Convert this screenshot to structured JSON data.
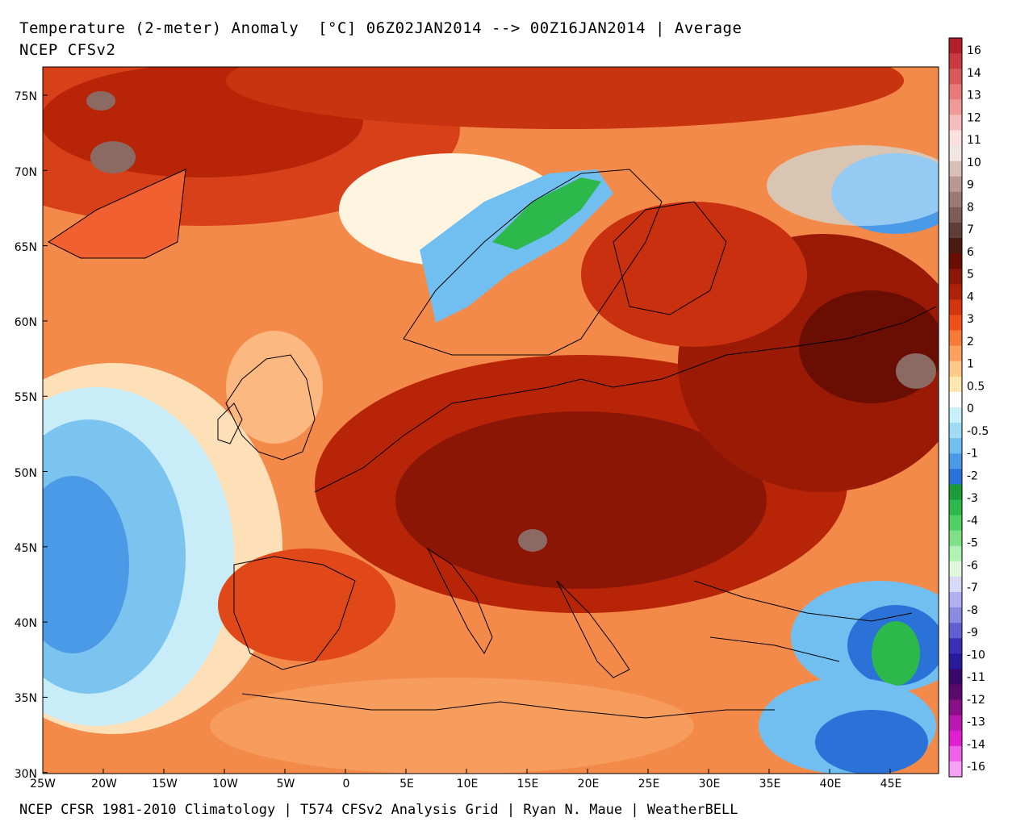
{
  "header": {
    "title_line1": "Temperature (2-meter) Anomaly  [°C] 06Z02JAN2014 --> 00Z16JAN2014 | Average",
    "title_line2": "NCEP CFSv2"
  },
  "footer": {
    "text": "NCEP CFSR 1981-2010 Climatology | T574 CFSv2 Analysis Grid | Ryan N. Maue | WeatherBELL"
  },
  "axes": {
    "lat_labels": [
      "75N",
      "70N",
      "65N",
      "60N",
      "55N",
      "50N",
      "45N",
      "40N",
      "35N",
      "30N"
    ],
    "lon_labels": [
      "25W",
      "20W",
      "15W",
      "10W",
      "5W",
      "0",
      "5E",
      "10E",
      "15E",
      "20E",
      "25E",
      "30E",
      "35E",
      "40E",
      "45E"
    ]
  },
  "colorbar": {
    "labels": [
      "16",
      "14",
      "13",
      "12",
      "11",
      "10",
      "9",
      "8",
      "7",
      "6",
      "5",
      "4",
      "3",
      "2",
      "1",
      "0.5",
      "0",
      "-0.5",
      "-1",
      "-2",
      "-3",
      "-4",
      "-5",
      "-6",
      "-7",
      "-8",
      "-9",
      "-10",
      "-11",
      "-12",
      "-13",
      "-14",
      "-16"
    ],
    "colors": [
      "#b0202a",
      "#c83a40",
      "#d95a5a",
      "#e67a78",
      "#f09a98",
      "#f6bcbc",
      "#fbe0de",
      "#f2e6e0",
      "#d8c0b8",
      "#b89890",
      "#9a7a72",
      "#7c5c54",
      "#5e3e36",
      "#4a1a10",
      "#6a0e04",
      "#8c1608",
      "#ad2208",
      "#d23510",
      "#f0501a",
      "#f87a38",
      "#fca060",
      "#fec88a",
      "#ffe8b0",
      "#ffffff",
      "#c8f0f8",
      "#9fdcf4",
      "#70bff0",
      "#4a9ae8",
      "#2a72d8",
      "#1d9a3a",
      "#2cb84a",
      "#50d060",
      "#80e088",
      "#b0f0b0",
      "#dff8dc",
      "#d8d8f8",
      "#b0b0f0",
      "#8a8ae0",
      "#6060d0",
      "#3a30b8",
      "#281a98",
      "#3a0a6a",
      "#5a0a6a",
      "#8a108a",
      "#b818b0",
      "#e020d0",
      "#f060e8",
      "#f8a0f4"
    ]
  }
}
